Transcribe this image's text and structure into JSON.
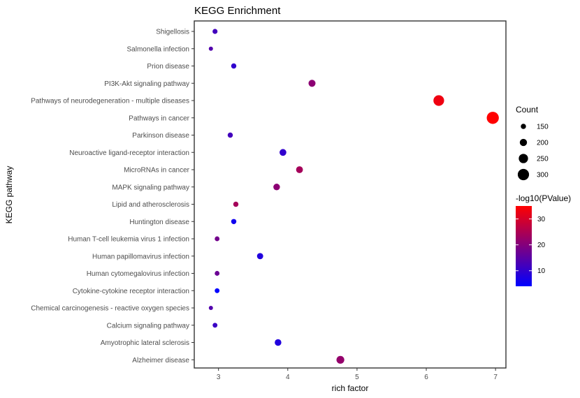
{
  "chart_data": {
    "type": "scatter",
    "title": "KEGG Enrichment",
    "xlabel": "rich factor",
    "ylabel": "KEGG pathway",
    "xlim": [
      2.65,
      7.15
    ],
    "x_ticks": [
      "3",
      "4",
      "5",
      "6",
      "7"
    ],
    "grid": false,
    "legend_position": "right",
    "categories": [
      "Shigellosis",
      "Salmonella infection",
      "Prion disease",
      "PI3K-Akt signaling pathway",
      "Pathways of neurodegeneration - multiple diseases",
      "Pathways in cancer",
      "Parkinson disease",
      "Neuroactive ligand-receptor interaction",
      "MicroRNAs in cancer",
      "MAPK signaling pathway",
      "Lipid and atherosclerosis",
      "Huntington disease",
      "Human T-cell leukemia virus 1 infection",
      "Human papillomavirus infection",
      "Human cytomegalovirus infection",
      "Cytokine-cytokine receptor interaction",
      "Chemical carcinogenesis - reactive oxygen species",
      "Calcium signaling pathway",
      "Amyotrophic lateral sclerosis",
      "Alzheimer disease"
    ],
    "points": [
      {
        "pathway": "Shigellosis",
        "rich_factor": 2.95,
        "count": 145,
        "neg_log10_p": 12
      },
      {
        "pathway": "Salmonella infection",
        "rich_factor": 2.89,
        "count": 125,
        "neg_log10_p": 14
      },
      {
        "pathway": "Prion disease",
        "rich_factor": 3.22,
        "count": 150,
        "neg_log10_p": 10
      },
      {
        "pathway": "PI3K-Akt signaling pathway",
        "rich_factor": 4.35,
        "count": 195,
        "neg_log10_p": 21
      },
      {
        "pathway": "Pathways of neurodegeneration - multiple diseases",
        "rich_factor": 6.18,
        "count": 285,
        "neg_log10_p": 33
      },
      {
        "pathway": "Pathways in cancer",
        "rich_factor": 6.96,
        "count": 320,
        "neg_log10_p": 35
      },
      {
        "pathway": "Parkinson disease",
        "rich_factor": 3.17,
        "count": 150,
        "neg_log10_p": 12
      },
      {
        "pathway": "Neuroactive ligand-receptor interaction",
        "rich_factor": 3.93,
        "count": 190,
        "neg_log10_p": 10
      },
      {
        "pathway": "MicroRNAs in cancer",
        "rich_factor": 4.17,
        "count": 190,
        "neg_log10_p": 24
      },
      {
        "pathway": "MAPK signaling pathway",
        "rich_factor": 3.84,
        "count": 185,
        "neg_log10_p": 21
      },
      {
        "pathway": "Lipid and atherosclerosis",
        "rich_factor": 3.25,
        "count": 150,
        "neg_log10_p": 24
      },
      {
        "pathway": "Huntington disease",
        "rich_factor": 3.22,
        "count": 150,
        "neg_log10_p": 6
      },
      {
        "pathway": "Human T-cell leukemia virus 1 infection",
        "rich_factor": 2.98,
        "count": 140,
        "neg_log10_p": 18
      },
      {
        "pathway": "Human papillomavirus infection",
        "rich_factor": 3.6,
        "count": 175,
        "neg_log10_p": 8
      },
      {
        "pathway": "Human cytomegalovirus infection",
        "rich_factor": 2.98,
        "count": 140,
        "neg_log10_p": 17
      },
      {
        "pathway": "Cytokine-cytokine receptor interaction",
        "rich_factor": 2.98,
        "count": 140,
        "neg_log10_p": 4
      },
      {
        "pathway": "Chemical carcinogenesis - reactive oxygen species",
        "rich_factor": 2.89,
        "count": 125,
        "neg_log10_p": 14
      },
      {
        "pathway": "Calcium signaling pathway",
        "rich_factor": 2.95,
        "count": 140,
        "neg_log10_p": 11
      },
      {
        "pathway": "Amyotrophic lateral sclerosis",
        "rich_factor": 3.86,
        "count": 185,
        "neg_log10_p": 8
      },
      {
        "pathway": "Alzheimer disease",
        "rich_factor": 4.76,
        "count": 215,
        "neg_log10_p": 22
      }
    ],
    "size_legend": {
      "title": "Count",
      "values": [
        150,
        200,
        250,
        300
      ],
      "labels": [
        "150",
        "200",
        "250",
        "300"
      ]
    },
    "color_legend": {
      "title": "-log10(PValue)",
      "range": [
        4,
        35
      ],
      "ticks": [
        10,
        20,
        30
      ],
      "tick_labels": [
        "10",
        "20",
        "30"
      ],
      "low_color": "#0000ff",
      "high_color": "#ff0000"
    }
  }
}
